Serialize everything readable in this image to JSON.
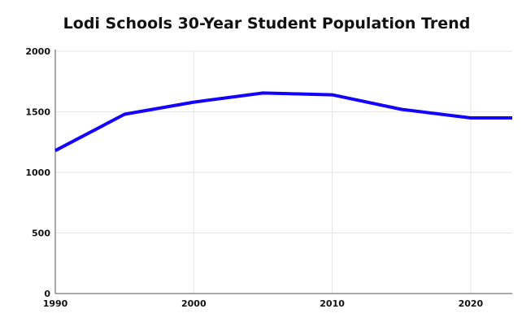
{
  "chart_data": {
    "type": "line",
    "title": "Lodi Schools 30-Year Student Population Trend",
    "xlabel": "",
    "ylabel": "",
    "x": [
      1990,
      1995,
      2000,
      2005,
      2010,
      2015,
      2020,
      2023
    ],
    "series": [
      {
        "values": [
          1180,
          1480,
          1580,
          1655,
          1640,
          1520,
          1450,
          1450
        ]
      }
    ],
    "xlim": [
      1990,
      2023
    ],
    "ylim": [
      0,
      2000
    ],
    "xticks": [
      1990,
      2000,
      2010,
      2020
    ],
    "yticks": [
      0,
      500,
      1000,
      1500,
      2000
    ],
    "grid": true,
    "line_color": "#1400ff"
  }
}
